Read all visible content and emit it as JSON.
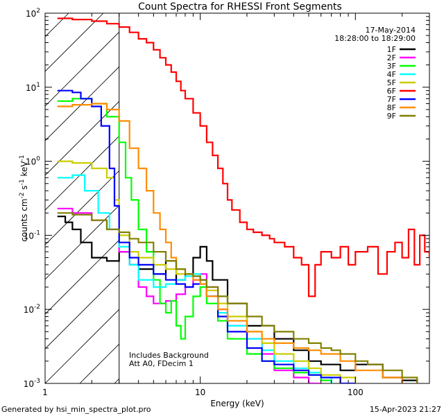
{
  "chart_data": {
    "type": "line",
    "title": "Count Spectra for RHESSI Front Segments",
    "xlabel": "Energy (keV)",
    "ylabel_main": "counts cm",
    "ylabel_sup1": "-2",
    "ylabel_mid": " s",
    "ylabel_sup2": "-1",
    "ylabel_unit": " keV",
    "ylabel_sup3": "-1",
    "x_scale": "log",
    "y_scale": "log",
    "xlim": [
      1,
      300
    ],
    "ylim": [
      0.001,
      100
    ],
    "x_ticks": [
      {
        "value": 1,
        "label": "1"
      },
      {
        "value": 10,
        "label": "10"
      },
      {
        "value": 100,
        "label": "100"
      }
    ],
    "y_ticks": [
      {
        "exp": -3,
        "label": "10",
        "sup": "-3"
      },
      {
        "exp": -2,
        "label": "10",
        "sup": "-2"
      },
      {
        "exp": -1,
        "label": "10",
        "sup": "-1"
      },
      {
        "exp": 0,
        "label": "10",
        "sup": "0"
      },
      {
        "exp": 1,
        "label": "10",
        "sup": "1"
      },
      {
        "exp": 2,
        "label": "10",
        "sup": "2"
      }
    ],
    "attenuator_shade_max_keV": 3,
    "date": "17-May-2014",
    "time_range": "18:28:00 to 18:29:00",
    "annotation_line1": "Includes Background",
    "annotation_line2": "Att A0, FDecim 1",
    "series": [
      {
        "name": "1F",
        "color": "#000000",
        "points": [
          [
            1.2,
            0.18
          ],
          [
            1.35,
            0.15
          ],
          [
            1.5,
            0.12
          ],
          [
            1.7,
            0.08
          ],
          [
            2.0,
            0.05
          ],
          [
            2.5,
            0.045
          ],
          [
            3.0,
            0.06
          ],
          [
            3.5,
            0.04
          ],
          [
            4.0,
            0.035
          ],
          [
            5.0,
            0.03
          ],
          [
            6.0,
            0.045
          ],
          [
            7.0,
            0.025
          ],
          [
            8.0,
            0.03
          ],
          [
            9.0,
            0.05
          ],
          [
            10.0,
            0.07
          ],
          [
            11.0,
            0.045
          ],
          [
            12.0,
            0.025
          ],
          [
            15.0,
            0.012
          ],
          [
            20.0,
            0.006
          ],
          [
            30.0,
            0.004
          ],
          [
            40.0,
            0.0028
          ],
          [
            50.0,
            0.002
          ],
          [
            60.0,
            0.0018
          ],
          [
            80.0,
            0.0015
          ],
          [
            100.0,
            0.0018
          ],
          [
            150.0,
            0.0012
          ],
          [
            200.0,
            0.0011
          ],
          [
            250.0,
            0.001
          ]
        ]
      },
      {
        "name": "2F",
        "color": "#ff00ff",
        "points": [
          [
            1.2,
            0.23
          ],
          [
            1.5,
            0.2
          ],
          [
            2.0,
            0.16
          ],
          [
            2.5,
            0.12
          ],
          [
            3.0,
            0.06
          ],
          [
            3.5,
            0.04
          ],
          [
            4.0,
            0.02
          ],
          [
            4.5,
            0.015
          ],
          [
            5.0,
            0.012
          ],
          [
            6.0,
            0.013
          ],
          [
            7.0,
            0.016
          ],
          [
            8.0,
            0.02
          ],
          [
            9.0,
            0.025
          ],
          [
            10.0,
            0.03
          ],
          [
            11.0,
            0.02
          ],
          [
            13.0,
            0.01
          ],
          [
            15.0,
            0.006
          ],
          [
            20.0,
            0.004
          ],
          [
            25.0,
            0.0025
          ],
          [
            30.0,
            0.0015
          ],
          [
            40.0,
            0.0012
          ],
          [
            50.0,
            0.001
          ],
          [
            60.0,
            0.001
          ]
        ]
      },
      {
        "name": "3F",
        "color": "#00ff00",
        "points": [
          [
            1.2,
            6.5
          ],
          [
            1.5,
            7.0
          ],
          [
            2.0,
            6.0
          ],
          [
            2.5,
            4.0
          ],
          [
            3.0,
            1.8
          ],
          [
            3.3,
            0.6
          ],
          [
            3.6,
            0.3
          ],
          [
            4.0,
            0.12
          ],
          [
            4.5,
            0.06
          ],
          [
            5.0,
            0.025
          ],
          [
            5.5,
            0.012
          ],
          [
            6.0,
            0.009
          ],
          [
            6.5,
            0.013
          ],
          [
            7.0,
            0.006
          ],
          [
            7.5,
            0.004
          ],
          [
            8.0,
            0.008
          ],
          [
            9.0,
            0.015
          ],
          [
            10.0,
            0.02
          ],
          [
            11.0,
            0.012
          ],
          [
            13.0,
            0.007
          ],
          [
            15.0,
            0.004
          ],
          [
            20.0,
            0.0025
          ],
          [
            25.0,
            0.002
          ],
          [
            30.0,
            0.0016
          ],
          [
            40.0,
            0.0014
          ],
          [
            50.0,
            0.0013
          ],
          [
            60.0,
            0.0011
          ],
          [
            70.0,
            0.001
          ]
        ]
      },
      {
        "name": "4F",
        "color": "#00ffff",
        "points": [
          [
            1.2,
            0.6
          ],
          [
            1.5,
            0.65
          ],
          [
            1.8,
            0.4
          ],
          [
            2.2,
            0.2
          ],
          [
            2.6,
            0.12
          ],
          [
            3.0,
            0.07
          ],
          [
            3.5,
            0.04
          ],
          [
            4.0,
            0.025
          ],
          [
            5.0,
            0.02
          ],
          [
            6.0,
            0.022
          ],
          [
            7.0,
            0.025
          ],
          [
            8.0,
            0.028
          ],
          [
            9.0,
            0.03
          ],
          [
            10.0,
            0.025
          ],
          [
            11.0,
            0.015
          ],
          [
            13.0,
            0.009
          ],
          [
            15.0,
            0.006
          ],
          [
            20.0,
            0.004
          ],
          [
            25.0,
            0.0028
          ],
          [
            30.0,
            0.002
          ],
          [
            40.0,
            0.0016
          ],
          [
            50.0,
            0.0014
          ],
          [
            60.0,
            0.0012
          ],
          [
            70.0,
            0.001
          ]
        ]
      },
      {
        "name": "5F",
        "color": "#cccc00",
        "points": [
          [
            1.2,
            1.0
          ],
          [
            1.5,
            0.95
          ],
          [
            2.0,
            0.8
          ],
          [
            2.5,
            0.6
          ],
          [
            2.8,
            0.3
          ],
          [
            3.0,
            0.1
          ],
          [
            3.5,
            0.06
          ],
          [
            4.0,
            0.05
          ],
          [
            5.0,
            0.04
          ],
          [
            6.0,
            0.035
          ],
          [
            7.0,
            0.03
          ],
          [
            8.0,
            0.03
          ],
          [
            9.0,
            0.028
          ],
          [
            10.0,
            0.025
          ],
          [
            11.0,
            0.018
          ],
          [
            13.0,
            0.012
          ],
          [
            15.0,
            0.008
          ],
          [
            20.0,
            0.005
          ],
          [
            25.0,
            0.0035
          ],
          [
            30.0,
            0.0025
          ],
          [
            40.0,
            0.002
          ],
          [
            50.0,
            0.0016
          ],
          [
            60.0,
            0.0013
          ],
          [
            80.0,
            0.0012
          ],
          [
            100.0,
            0.001
          ]
        ]
      },
      {
        "name": "6F",
        "color": "#ff0000",
        "points": [
          [
            1.2,
            85
          ],
          [
            1.5,
            82
          ],
          [
            2.0,
            78
          ],
          [
            2.5,
            72
          ],
          [
            3.0,
            65
          ],
          [
            3.5,
            55
          ],
          [
            4.0,
            45
          ],
          [
            4.5,
            40
          ],
          [
            5.0,
            32
          ],
          [
            5.5,
            25
          ],
          [
            6.0,
            20
          ],
          [
            6.5,
            16
          ],
          [
            7.0,
            12
          ],
          [
            7.5,
            9
          ],
          [
            8.0,
            7
          ],
          [
            9.0,
            4.5
          ],
          [
            10.0,
            3
          ],
          [
            11.0,
            1.8
          ],
          [
            12.0,
            1.2
          ],
          [
            13.0,
            0.8
          ],
          [
            14.0,
            0.5
          ],
          [
            15.0,
            0.3
          ],
          [
            16.0,
            0.22
          ],
          [
            18.0,
            0.15
          ],
          [
            20.0,
            0.12
          ],
          [
            22.0,
            0.11
          ],
          [
            25.0,
            0.1
          ],
          [
            28.0,
            0.09
          ],
          [
            30.0,
            0.08
          ],
          [
            35.0,
            0.07
          ],
          [
            40.0,
            0.05
          ],
          [
            45.0,
            0.04
          ],
          [
            50.0,
            0.015
          ],
          [
            55.0,
            0.04
          ],
          [
            60.0,
            0.06
          ],
          [
            70.0,
            0.05
          ],
          [
            80.0,
            0.07
          ],
          [
            90.0,
            0.04
          ],
          [
            100.0,
            0.06
          ],
          [
            120.0,
            0.07
          ],
          [
            140.0,
            0.03
          ],
          [
            160.0,
            0.06
          ],
          [
            180.0,
            0.08
          ],
          [
            200.0,
            0.05
          ],
          [
            220.0,
            0.12
          ],
          [
            240.0,
            0.04
          ],
          [
            260.0,
            0.1
          ],
          [
            280.0,
            0.06
          ],
          [
            300.0,
            0.05
          ]
        ]
      },
      {
        "name": "7F",
        "color": "#0000ff",
        "points": [
          [
            1.2,
            9.0
          ],
          [
            1.5,
            8.5
          ],
          [
            1.7,
            7.0
          ],
          [
            2.0,
            5.5
          ],
          [
            2.3,
            3.0
          ],
          [
            2.6,
            0.8
          ],
          [
            2.8,
            0.25
          ],
          [
            3.0,
            0.08
          ],
          [
            3.5,
            0.05
          ],
          [
            4.0,
            0.04
          ],
          [
            5.0,
            0.03
          ],
          [
            6.0,
            0.025
          ],
          [
            7.0,
            0.022
          ],
          [
            8.0,
            0.02
          ],
          [
            9.0,
            0.022
          ],
          [
            10.0,
            0.025
          ],
          [
            11.0,
            0.015
          ],
          [
            13.0,
            0.008
          ],
          [
            15.0,
            0.005
          ],
          [
            20.0,
            0.003
          ],
          [
            25.0,
            0.002
          ],
          [
            30.0,
            0.0018
          ],
          [
            40.0,
            0.0015
          ],
          [
            50.0,
            0.0013
          ],
          [
            60.0,
            0.0012
          ],
          [
            80.0,
            0.001
          ],
          [
            100.0,
            0.001
          ]
        ]
      },
      {
        "name": "8F",
        "color": "#ff8c00",
        "points": [
          [
            1.2,
            5.5
          ],
          [
            1.5,
            5.8
          ],
          [
            2.0,
            6.0
          ],
          [
            2.5,
            5.0
          ],
          [
            3.0,
            3.5
          ],
          [
            3.5,
            1.5
          ],
          [
            4.0,
            0.8
          ],
          [
            4.5,
            0.4
          ],
          [
            5.0,
            0.2
          ],
          [
            5.5,
            0.12
          ],
          [
            6.0,
            0.08
          ],
          [
            6.5,
            0.05
          ],
          [
            7.0,
            0.035
          ],
          [
            8.0,
            0.03
          ],
          [
            9.0,
            0.025
          ],
          [
            10.0,
            0.022
          ],
          [
            11.0,
            0.015
          ],
          [
            13.0,
            0.01
          ],
          [
            15.0,
            0.007
          ],
          [
            20.0,
            0.005
          ],
          [
            25.0,
            0.004
          ],
          [
            30.0,
            0.0035
          ],
          [
            40.0,
            0.003
          ],
          [
            50.0,
            0.0028
          ],
          [
            60.0,
            0.0025
          ],
          [
            80.0,
            0.002
          ],
          [
            100.0,
            0.0015
          ],
          [
            150.0,
            0.0012
          ],
          [
            200.0,
            0.001
          ]
        ]
      },
      {
        "name": "9F",
        "color": "#808000",
        "points": [
          [
            1.2,
            0.2
          ],
          [
            1.5,
            0.19
          ],
          [
            2.0,
            0.16
          ],
          [
            2.5,
            0.12
          ],
          [
            3.0,
            0.11
          ],
          [
            3.5,
            0.09
          ],
          [
            4.0,
            0.08
          ],
          [
            5.0,
            0.06
          ],
          [
            6.0,
            0.045
          ],
          [
            7.0,
            0.035
          ],
          [
            8.0,
            0.03
          ],
          [
            9.0,
            0.028
          ],
          [
            10.0,
            0.025
          ],
          [
            11.0,
            0.02
          ],
          [
            13.0,
            0.015
          ],
          [
            15.0,
            0.012
          ],
          [
            20.0,
            0.008
          ],
          [
            25.0,
            0.006
          ],
          [
            30.0,
            0.005
          ],
          [
            40.0,
            0.004
          ],
          [
            50.0,
            0.0035
          ],
          [
            60.0,
            0.003
          ],
          [
            70.0,
            0.0028
          ],
          [
            80.0,
            0.0025
          ],
          [
            100.0,
            0.002
          ],
          [
            120.0,
            0.0018
          ],
          [
            150.0,
            0.0015
          ],
          [
            200.0,
            0.0012
          ],
          [
            250.0,
            0.001
          ]
        ]
      }
    ]
  },
  "footer": {
    "generated_by": "Generated by hsi_min_spectra_plot.pro",
    "timestamp": "15-Apr-2023 21:27"
  }
}
